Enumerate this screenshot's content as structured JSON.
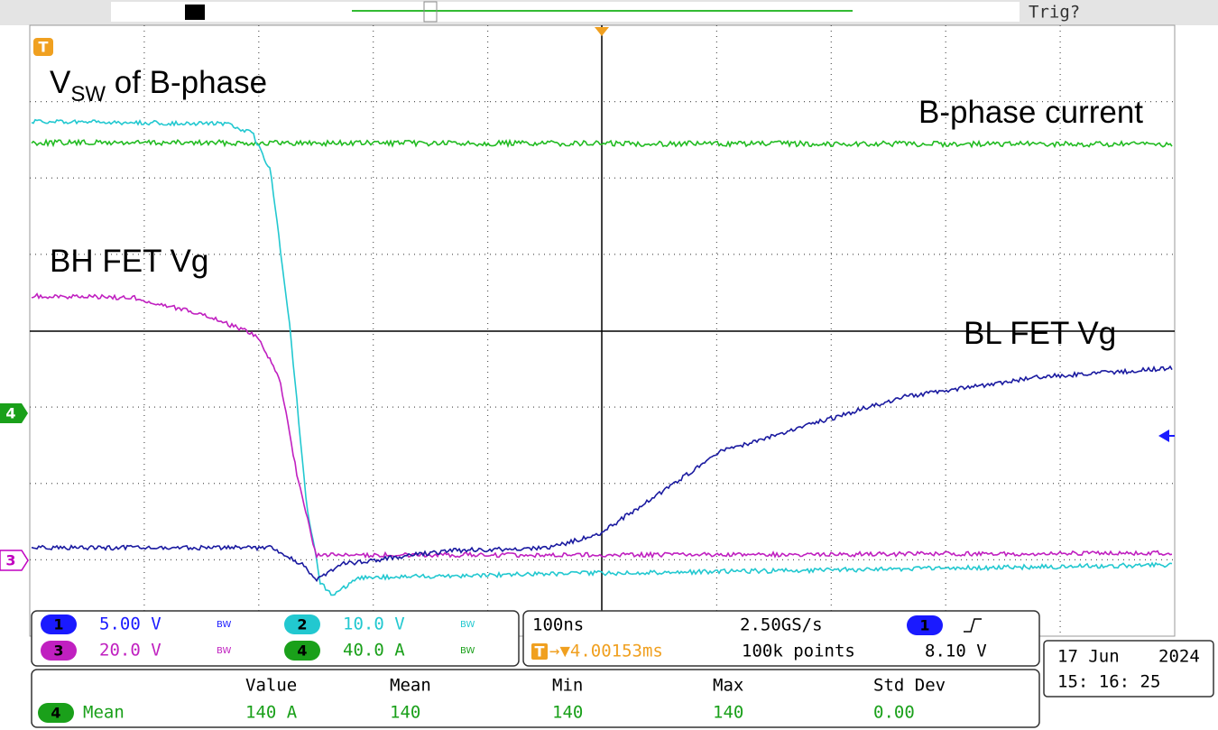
{
  "top_bar": {
    "trigger_status": "Trig?"
  },
  "markers": {
    "trigger": "T",
    "ch4": "4",
    "ch3": "3"
  },
  "annotations": {
    "vsw_main": "V",
    "vsw_sub": "SW",
    "vsw_rest": " of B-phase",
    "b_phase_current": "B-phase current",
    "bh_fet_vg": "BH FET Vg",
    "bl_fet_vg": "BL FET Vg"
  },
  "channels": [
    {
      "id": "1",
      "scale": "5.00 V",
      "bw": "BW"
    },
    {
      "id": "2",
      "scale": "10.0 V",
      "bw": "BW"
    },
    {
      "id": "3",
      "scale": "20.0 V",
      "bw": "BW"
    },
    {
      "id": "4",
      "scale": "40.0 A",
      "bw": "BW"
    }
  ],
  "timebase": {
    "horizontal": "100ns",
    "sample_rate": "2.50GS/s",
    "trigger_source": "1",
    "trigger_icon": "T",
    "trigger_position": "→▼4.00153ms",
    "record_length": "100k points",
    "trigger_level": "8.10 V"
  },
  "datetime": {
    "date": "17 Jun",
    "year": "2024",
    "time": "15: 16: 25"
  },
  "measurements": {
    "headers": [
      "Value",
      "Mean",
      "Min",
      "Max",
      "Std Dev"
    ],
    "rows": [
      {
        "source": "4",
        "name": "Mean",
        "cells": [
          "140 A",
          "140",
          "140",
          "140",
          "0.00"
        ]
      }
    ]
  }
}
